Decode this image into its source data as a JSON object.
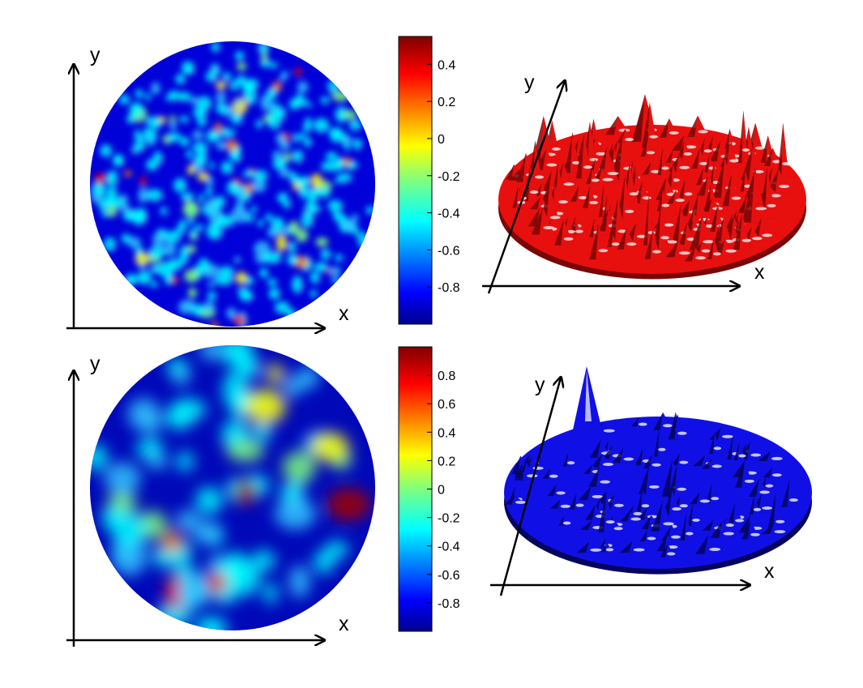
{
  "panels": [
    {
      "id": "top",
      "map": {
        "x_label": "x",
        "y_label": "y",
        "colormap": "jet"
      },
      "colorbar": {
        "ticks": [
          "0.4",
          "0.2",
          "0",
          "-0.2",
          "-0.4",
          "-0.6",
          "-0.8"
        ],
        "min": -1.0,
        "max": 0.55
      },
      "surface": {
        "x_label": "x",
        "y_label": "y",
        "color": "#e8100f",
        "shade": "#7a0606"
      }
    },
    {
      "id": "bottom",
      "map": {
        "x_label": "x",
        "y_label": "y",
        "colormap": "jet"
      },
      "colorbar": {
        "ticks": [
          "0.8",
          "0.6",
          "0.4",
          "0.2",
          "0",
          "-0.2",
          "-0.4",
          "-0.6",
          "-0.8"
        ],
        "min": -1.0,
        "max": 1.0
      },
      "surface": {
        "x_label": "x",
        "y_label": "y",
        "color": "#1010e6",
        "shade": "#05055e"
      }
    }
  ]
}
